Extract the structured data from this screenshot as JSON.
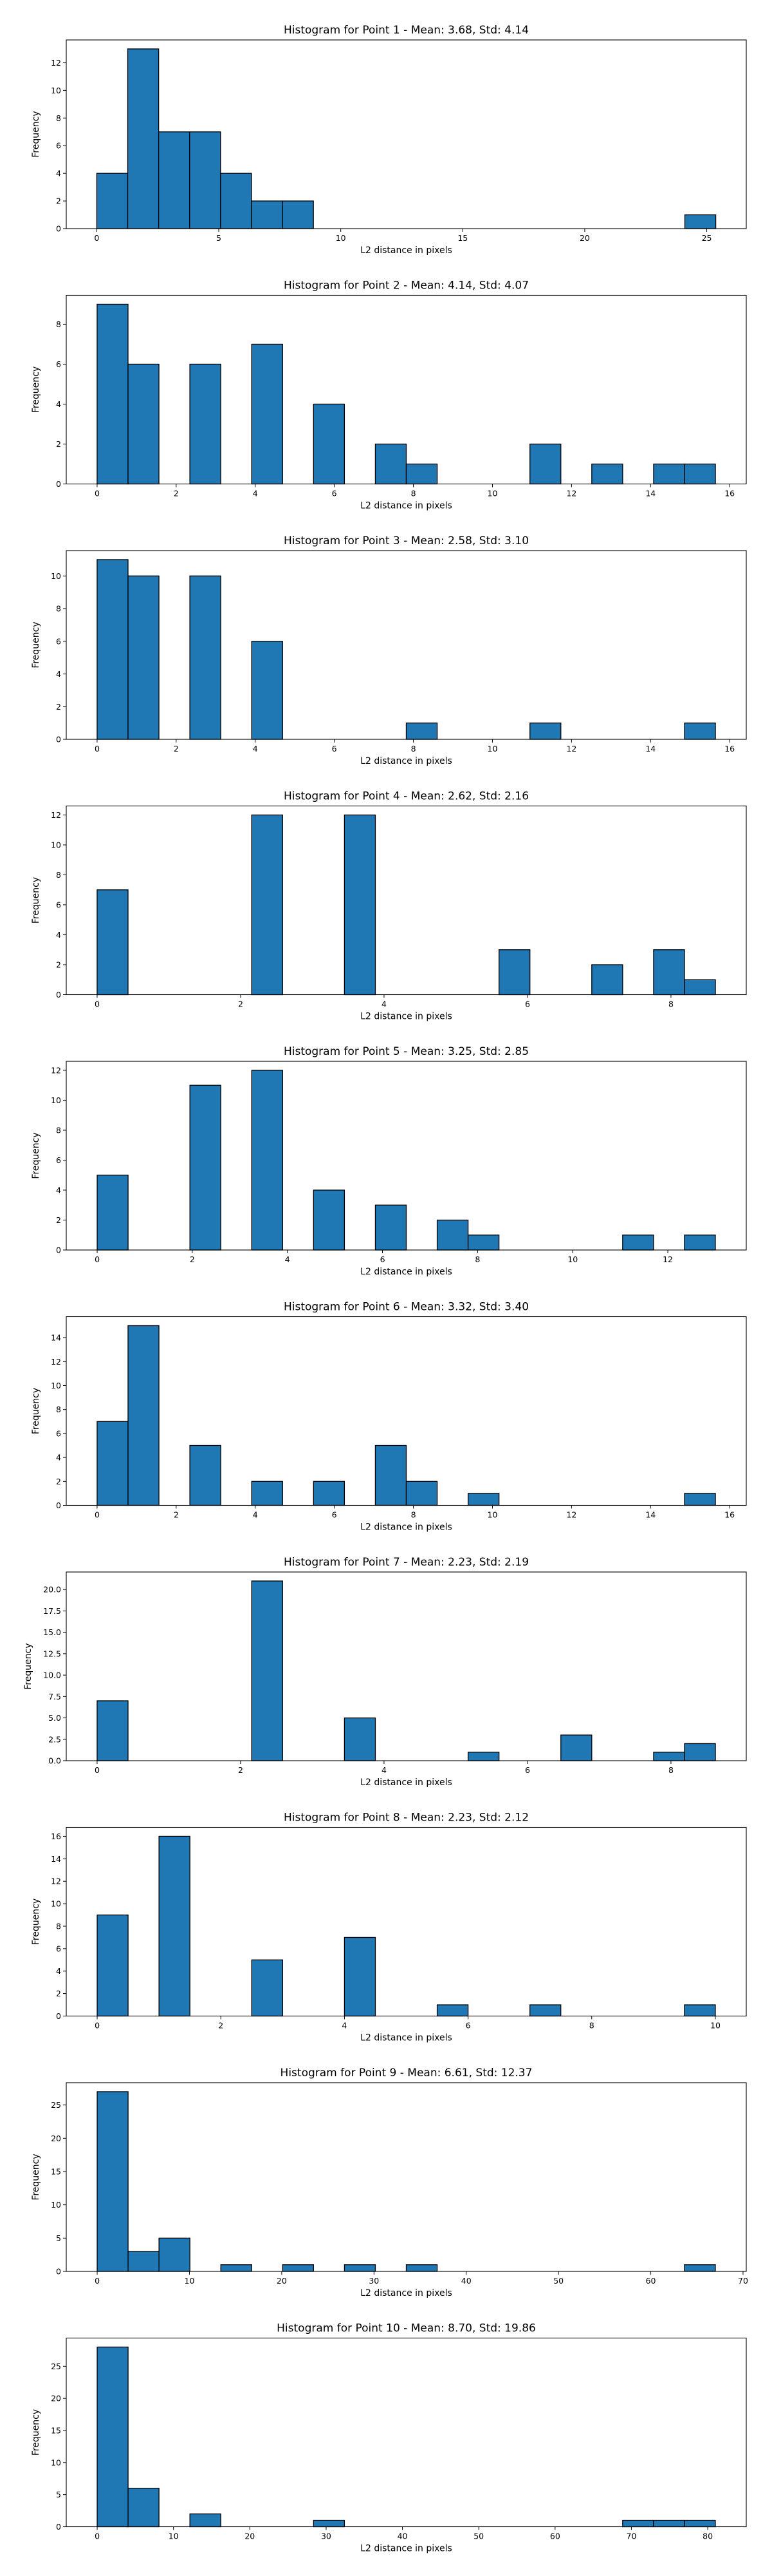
{
  "style": {
    "bar_color": "#1f77b4",
    "edge_color": "#000000"
  },
  "chart_data": [
    {
      "type": "bar",
      "title": "Histogram for Point 1 - Mean: 3.68, Std: 4.14",
      "xlabel": "L2 distance in pixels",
      "ylabel": "Frequency",
      "xlim": [
        -1.25,
        26.62
      ],
      "ylim": [
        0,
        13.65
      ],
      "xticks": [
        0,
        5,
        10,
        15,
        20,
        25
      ],
      "yticks": [
        0,
        2,
        4,
        6,
        8,
        10,
        12
      ],
      "bin_range": [
        0,
        25.37
      ],
      "bins": 20,
      "values": [
        4,
        13,
        7,
        7,
        4,
        2,
        2,
        0,
        0,
        0,
        0,
        0,
        0,
        0,
        0,
        0,
        0,
        0,
        0,
        1
      ],
      "grid": false,
      "legend": "none"
    },
    {
      "type": "bar",
      "title": "Histogram for Point 2 - Mean: 4.14, Std: 4.07",
      "xlabel": "L2 distance in pixels",
      "ylabel": "Frequency",
      "xlim": [
        -0.78,
        16.42
      ],
      "ylim": [
        0,
        9.45
      ],
      "xticks": [
        0,
        2,
        4,
        6,
        8,
        10,
        12,
        14,
        16
      ],
      "yticks": [
        0,
        2,
        4,
        6,
        8
      ],
      "bin_range": [
        0,
        15.64
      ],
      "bins": 20,
      "values": [
        9,
        6,
        0,
        6,
        0,
        7,
        0,
        4,
        0,
        2,
        1,
        0,
        0,
        0,
        2,
        0,
        1,
        0,
        1,
        1
      ],
      "grid": false,
      "legend": "none"
    },
    {
      "type": "bar",
      "title": "Histogram for Point 3 - Mean: 2.58, Std: 3.10",
      "xlabel": "L2 distance in pixels",
      "ylabel": "Frequency",
      "xlim": [
        -0.78,
        16.42
      ],
      "ylim": [
        0,
        11.55
      ],
      "xticks": [
        0,
        2,
        4,
        6,
        8,
        10,
        12,
        14,
        16
      ],
      "yticks": [
        0,
        2,
        4,
        6,
        8,
        10
      ],
      "bin_range": [
        0,
        15.64
      ],
      "bins": 20,
      "values": [
        11,
        10,
        0,
        10,
        0,
        6,
        0,
        0,
        0,
        0,
        1,
        0,
        0,
        0,
        1,
        0,
        0,
        0,
        0,
        1
      ],
      "grid": false,
      "legend": "none"
    },
    {
      "type": "bar",
      "title": "Histogram for Point 4 - Mean: 2.62, Std: 2.16",
      "xlabel": "L2 distance in pixels",
      "ylabel": "Frequency",
      "xlim": [
        -0.43,
        9.05
      ],
      "ylim": [
        0,
        12.6
      ],
      "xticks": [
        0,
        2,
        4,
        6,
        8
      ],
      "yticks": [
        0,
        2,
        4,
        6,
        8,
        10,
        12
      ],
      "bin_range": [
        0,
        8.62
      ],
      "bins": 20,
      "values": [
        7,
        0,
        0,
        0,
        0,
        12,
        0,
        0,
        12,
        0,
        0,
        0,
        0,
        3,
        0,
        0,
        2,
        0,
        3,
        1
      ],
      "grid": false,
      "legend": "none"
    },
    {
      "type": "bar",
      "title": "Histogram for Point 5 - Mean: 3.25, Std: 2.85",
      "xlabel": "L2 distance in pixels",
      "ylabel": "Frequency",
      "xlim": [
        -0.65,
        13.65
      ],
      "ylim": [
        0,
        12.6
      ],
      "xticks": [
        0,
        2,
        4,
        6,
        8,
        10,
        12
      ],
      "yticks": [
        0,
        2,
        4,
        6,
        8,
        10,
        12
      ],
      "bin_range": [
        0,
        13.0
      ],
      "bins": 20,
      "values": [
        5,
        0,
        0,
        11,
        0,
        12,
        0,
        4,
        0,
        3,
        0,
        2,
        1,
        0,
        0,
        0,
        0,
        1,
        0,
        1
      ],
      "grid": false,
      "legend": "none"
    },
    {
      "type": "bar",
      "title": "Histogram for Point 6 - Mean: 3.32, Std: 3.40",
      "xlabel": "L2 distance in pixels",
      "ylabel": "Frequency",
      "xlim": [
        -0.78,
        16.42
      ],
      "ylim": [
        0,
        15.75
      ],
      "xticks": [
        0,
        2,
        4,
        6,
        8,
        10,
        12,
        14,
        16
      ],
      "yticks": [
        0,
        2,
        4,
        6,
        8,
        10,
        12,
        14
      ],
      "bin_range": [
        0,
        15.64
      ],
      "bins": 20,
      "values": [
        7,
        15,
        0,
        5,
        0,
        2,
        0,
        2,
        0,
        5,
        2,
        0,
        1,
        0,
        0,
        0,
        0,
        0,
        0,
        1
      ],
      "grid": false,
      "legend": "none"
    },
    {
      "type": "bar",
      "title": "Histogram for Point 7 - Mean: 2.23, Std: 2.19",
      "xlabel": "L2 distance in pixels",
      "ylabel": "Frequency",
      "xlim": [
        -0.43,
        9.05
      ],
      "ylim": [
        0,
        22.05
      ],
      "xticks": [
        0,
        2,
        4,
        6,
        8
      ],
      "yticks": [
        0.0,
        2.5,
        5.0,
        7.5,
        10.0,
        12.5,
        15.0,
        17.5,
        20.0
      ],
      "ytick_labels": [
        "0.0",
        "2.5",
        "5.0",
        "7.5",
        "10.0",
        "12.5",
        "15.0",
        "17.5",
        "20.0"
      ],
      "bin_range": [
        0,
        8.62
      ],
      "bins": 20,
      "values": [
        7,
        0,
        0,
        0,
        0,
        21,
        0,
        0,
        5,
        0,
        0,
        0,
        1,
        0,
        0,
        3,
        0,
        0,
        1,
        2
      ],
      "grid": false,
      "legend": "none"
    },
    {
      "type": "bar",
      "title": "Histogram for Point 8 - Mean: 2.23, Std: 2.12",
      "xlabel": "L2 distance in pixels",
      "ylabel": "Frequency",
      "xlim": [
        -0.5,
        10.5
      ],
      "ylim": [
        0,
        16.8
      ],
      "xticks": [
        0,
        2,
        4,
        6,
        8,
        10
      ],
      "yticks": [
        0,
        2,
        4,
        6,
        8,
        10,
        12,
        14,
        16
      ],
      "bin_range": [
        0,
        10.0
      ],
      "bins": 20,
      "values": [
        9,
        0,
        16,
        0,
        0,
        5,
        0,
        0,
        7,
        0,
        0,
        1,
        0,
        0,
        1,
        0,
        0,
        0,
        0,
        1
      ],
      "grid": false,
      "legend": "none"
    },
    {
      "type": "bar",
      "title": "Histogram for Point 9 - Mean: 6.61, Std: 12.37",
      "xlabel": "L2 distance in pixels",
      "ylabel": "Frequency",
      "xlim": [
        -3.35,
        70.35
      ],
      "ylim": [
        0,
        28.35
      ],
      "xticks": [
        0,
        10,
        20,
        30,
        40,
        50,
        60,
        70
      ],
      "yticks": [
        0,
        5,
        10,
        15,
        20,
        25
      ],
      "bin_range": [
        0,
        67.0
      ],
      "bins": 20,
      "values": [
        27,
        3,
        5,
        0,
        1,
        0,
        1,
        0,
        1,
        0,
        1,
        0,
        0,
        0,
        0,
        0,
        0,
        0,
        0,
        1
      ],
      "grid": false,
      "legend": "none"
    },
    {
      "type": "bar",
      "title": "Histogram for Point 10 - Mean: 8.70, Std: 19.86",
      "xlabel": "L2 distance in pixels",
      "ylabel": "Frequency",
      "xlim": [
        -4.05,
        85.05
      ],
      "ylim": [
        0,
        29.4
      ],
      "xticks": [
        0,
        10,
        20,
        30,
        40,
        50,
        60,
        70,
        80
      ],
      "yticks": [
        0,
        5,
        10,
        15,
        20,
        25
      ],
      "bin_range": [
        0,
        81.0
      ],
      "bins": 20,
      "values": [
        28,
        6,
        0,
        2,
        0,
        0,
        0,
        1,
        0,
        0,
        0,
        0,
        0,
        0,
        0,
        0,
        0,
        1,
        1,
        1
      ],
      "grid": false,
      "legend": "none"
    }
  ]
}
